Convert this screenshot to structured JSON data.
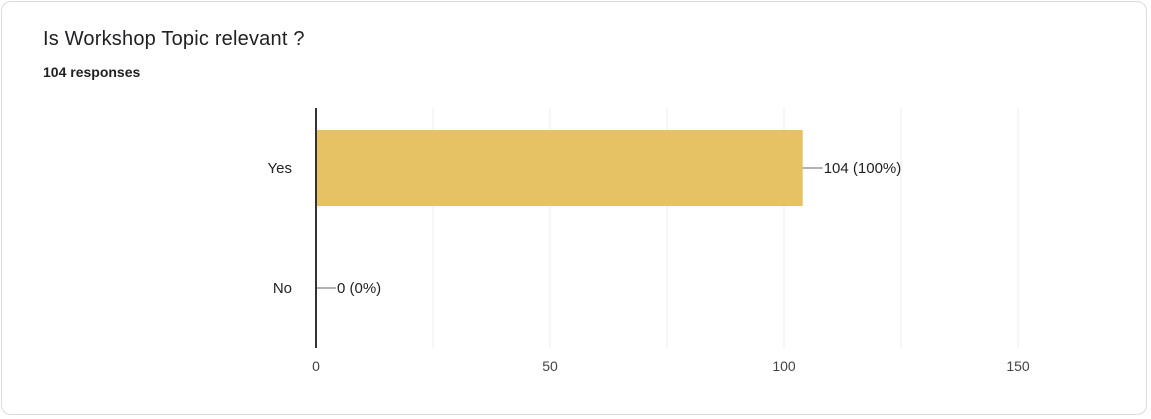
{
  "card": {
    "title": "Is Workshop Topic relevant ?",
    "subtitle": "104 responses"
  },
  "colors": {
    "bar": "#e6c265",
    "axis": "#333333",
    "grid": "#eeeeee",
    "leader": "#666666"
  },
  "chart_data": {
    "type": "bar",
    "orientation": "horizontal",
    "categories": [
      "Yes",
      "No"
    ],
    "values": [
      104,
      0
    ],
    "data_labels": [
      "104 (100%)",
      "0 (0%)"
    ],
    "xlim": [
      0,
      150
    ],
    "xticks": [
      0,
      50,
      100,
      150
    ],
    "xtick_labels": [
      "0",
      "50",
      "100",
      "150"
    ],
    "grid": true,
    "legend": "none"
  }
}
